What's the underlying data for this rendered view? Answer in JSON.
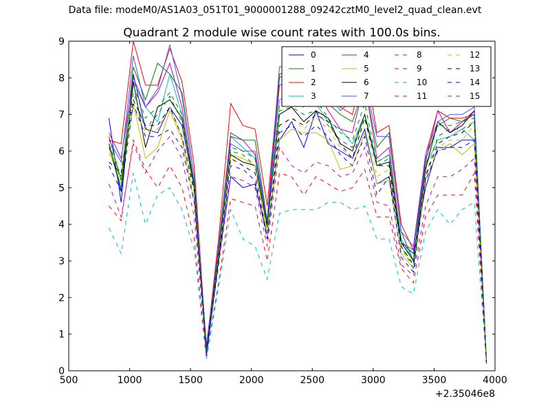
{
  "suptitle": "Data file: modeM0/AS1A03_051T01_9000001288_09242cztM0_level2_quad_clean.evt",
  "chart_data": {
    "type": "line",
    "title": "Quadrant 2 module wise count rates with 100.0s bins.",
    "xlabel": "",
    "ylabel": "",
    "x_offset_label": "+2.35046e8",
    "xlim": [
      500,
      4000
    ],
    "ylim": [
      0,
      9
    ],
    "xticks": [
      "500",
      "1000",
      "1500",
      "2000",
      "2500",
      "3000",
      "3500",
      "4000"
    ],
    "yticks": [
      "0",
      "1",
      "2",
      "3",
      "4",
      "5",
      "6",
      "7",
      "8",
      "9"
    ],
    "grid": false,
    "legend_position": "upper-right",
    "legend_columns": 4,
    "x": [
      830,
      930,
      1030,
      1130,
      1230,
      1330,
      1430,
      1530,
      1630,
      1730,
      1830,
      1930,
      2030,
      2130,
      2230,
      2330,
      2430,
      2530,
      2630,
      2730,
      2830,
      2930,
      3030,
      3130,
      3230,
      3330,
      3430,
      3530,
      3630,
      3730,
      3830,
      3930
    ],
    "series": [
      {
        "name": "0",
        "color": "#0000ff",
        "dash": "solid",
        "values": [
          6.9,
          4.6,
          8.1,
          6.6,
          6.5,
          7.2,
          6.7,
          5.0,
          0.4,
          3.0,
          5.3,
          5.0,
          5.1,
          3.7,
          6.3,
          6.8,
          6.1,
          7.1,
          6.2,
          6.0,
          5.8,
          6.6,
          5.1,
          5.3,
          3.5,
          3.2,
          5.0,
          6.1,
          6.1,
          6.3,
          6.3,
          0.2
        ]
      },
      {
        "name": "1",
        "color": "#008000",
        "dash": "solid",
        "values": [
          6.4,
          5.2,
          8.3,
          7.4,
          8.4,
          8.1,
          7.6,
          5.3,
          0.6,
          3.4,
          6.5,
          6.3,
          6.3,
          4.1,
          8.0,
          8.2,
          7.8,
          7.6,
          7.3,
          7.0,
          6.8,
          7.8,
          6.1,
          6.5,
          3.8,
          3.0,
          5.8,
          6.7,
          6.9,
          6.8,
          7.0,
          0.2
        ]
      },
      {
        "name": "2",
        "color": "#ff0000",
        "dash": "solid",
        "values": [
          6.3,
          6.2,
          9.0,
          7.8,
          7.8,
          8.8,
          7.9,
          5.6,
          0.6,
          3.6,
          7.3,
          6.7,
          6.6,
          4.5,
          8.1,
          8.2,
          8.0,
          8.1,
          7.5,
          7.2,
          7.0,
          8.5,
          6.5,
          6.7,
          4.0,
          3.3,
          5.9,
          7.1,
          6.9,
          6.9,
          7.0,
          0.2
        ]
      },
      {
        "name": "3",
        "color": "#00bfbf",
        "dash": "solid",
        "values": [
          6.2,
          5.0,
          7.9,
          7.2,
          6.8,
          8.1,
          7.0,
          5.0,
          0.5,
          3.2,
          6.4,
          6.1,
          5.8,
          3.9,
          7.4,
          7.6,
          7.3,
          7.3,
          6.8,
          6.6,
          6.2,
          7.0,
          5.7,
          5.9,
          3.6,
          3.0,
          5.6,
          6.3,
          6.4,
          6.6,
          6.3,
          0.2
        ]
      },
      {
        "name": "4",
        "color": "#bf00bf",
        "dash": "solid",
        "values": [
          6.5,
          5.8,
          8.0,
          7.2,
          7.6,
          8.4,
          7.2,
          5.1,
          0.7,
          3.3,
          6.4,
          6.3,
          5.9,
          4.0,
          7.8,
          7.9,
          7.7,
          7.8,
          7.1,
          6.6,
          6.5,
          7.9,
          5.8,
          6.1,
          3.5,
          3.3,
          5.7,
          7.1,
          6.5,
          6.8,
          7.1,
          0.3
        ]
      },
      {
        "name": "5",
        "color": "#bfbf00",
        "dash": "solid",
        "values": [
          6.0,
          5.1,
          7.3,
          5.8,
          6.1,
          7.1,
          6.3,
          4.6,
          0.6,
          3.1,
          5.9,
          5.8,
          5.6,
          3.7,
          6.3,
          6.6,
          6.5,
          6.5,
          6.3,
          5.5,
          5.6,
          6.5,
          5.1,
          5.2,
          3.2,
          2.8,
          5.2,
          6.0,
          6.2,
          5.9,
          6.2,
          0.2
        ]
      },
      {
        "name": "6",
        "color": "#000000",
        "dash": "solid",
        "values": [
          6.2,
          4.9,
          7.9,
          6.1,
          7.2,
          7.4,
          6.9,
          5.1,
          0.6,
          3.2,
          5.9,
          5.7,
          5.6,
          4.0,
          7.0,
          7.2,
          6.8,
          7.1,
          6.9,
          6.2,
          6.0,
          7.0,
          5.6,
          5.7,
          3.5,
          3.0,
          5.5,
          6.8,
          6.5,
          6.7,
          7.1,
          0.2
        ]
      },
      {
        "name": "7",
        "color": "#4d4dff",
        "dash": "solid",
        "values": [
          6.3,
          5.7,
          8.6,
          7.2,
          7.7,
          8.9,
          7.5,
          5.3,
          0.6,
          3.4,
          6.2,
          6.0,
          6.0,
          4.1,
          8.3,
          8.3,
          8.2,
          8.6,
          7.6,
          7.1,
          7.4,
          7.9,
          6.4,
          6.4,
          3.8,
          3.4,
          5.9,
          6.8,
          7.0,
          7.0,
          7.2,
          0.2
        ]
      },
      {
        "name": "8",
        "color": "#008000",
        "dash": "dashed",
        "values": [
          6.2,
          5.3,
          7.6,
          6.6,
          7.0,
          7.5,
          6.8,
          4.9,
          0.6,
          3.2,
          6.0,
          5.9,
          5.6,
          3.9,
          7.1,
          7.2,
          7.0,
          7.1,
          6.7,
          6.3,
          6.1,
          7.0,
          5.6,
          5.8,
          3.4,
          2.8,
          5.3,
          6.4,
          6.6,
          6.6,
          6.8,
          0.2
        ]
      },
      {
        "name": "9",
        "color": "#ff0000",
        "dash": "dashed",
        "values": [
          4.5,
          4.1,
          6.3,
          5.5,
          5.0,
          5.6,
          5.0,
          3.6,
          0.4,
          2.4,
          4.7,
          4.6,
          4.5,
          3.0,
          5.4,
          5.3,
          4.8,
          5.3,
          5.1,
          4.9,
          5.0,
          5.5,
          4.2,
          4.2,
          2.8,
          2.4,
          4.2,
          4.8,
          4.8,
          4.8,
          5.4,
          0.2
        ]
      },
      {
        "name": "10",
        "color": "#00bfbf",
        "dash": "dashed",
        "values": [
          3.9,
          3.2,
          5.4,
          4.0,
          4.8,
          5.0,
          4.4,
          3.3,
          0.3,
          2.3,
          4.4,
          3.6,
          3.4,
          2.5,
          4.3,
          4.4,
          4.4,
          4.4,
          4.6,
          4.6,
          4.4,
          4.5,
          3.6,
          3.6,
          2.3,
          2.1,
          3.8,
          4.4,
          4.0,
          4.4,
          4.6,
          0.2
        ]
      },
      {
        "name": "11",
        "color": "#bf00bf",
        "dash": "dashed",
        "values": [
          5.1,
          4.2,
          6.2,
          5.4,
          6.0,
          6.4,
          5.8,
          4.2,
          0.5,
          2.9,
          5.3,
          5.2,
          5.0,
          3.4,
          6.1,
          5.6,
          5.4,
          5.7,
          5.6,
          5.3,
          5.4,
          6.1,
          4.6,
          4.5,
          2.9,
          2.6,
          4.5,
          5.3,
          5.3,
          5.5,
          5.8,
          0.2
        ]
      },
      {
        "name": "12",
        "color": "#bfbf00",
        "dash": "dashed",
        "values": [
          5.9,
          5.6,
          7.2,
          6.5,
          6.6,
          7.2,
          6.4,
          4.7,
          0.6,
          3.1,
          5.9,
          5.8,
          5.6,
          3.8,
          6.7,
          6.9,
          6.6,
          6.9,
          6.6,
          6.1,
          5.8,
          6.9,
          5.3,
          5.5,
          3.3,
          2.9,
          5.4,
          6.1,
          6.3,
          6.3,
          6.7,
          0.2
        ]
      },
      {
        "name": "13",
        "color": "#000000",
        "dash": "dashed",
        "values": [
          5.7,
          5.4,
          7.4,
          6.7,
          6.7,
          7.2,
          6.4,
          4.9,
          0.6,
          3.0,
          5.8,
          5.6,
          5.4,
          3.6,
          6.7,
          6.9,
          6.7,
          7.0,
          6.8,
          6.2,
          5.8,
          6.9,
          5.6,
          5.6,
          3.4,
          2.9,
          5.3,
          6.2,
          6.4,
          6.5,
          6.8,
          0.2
        ]
      },
      {
        "name": "14",
        "color": "#0000ff",
        "dash": "dashed",
        "values": [
          5.6,
          4.9,
          7.3,
          6.4,
          6.4,
          6.6,
          6.1,
          4.6,
          0.5,
          2.9,
          5.6,
          5.5,
          5.2,
          3.6,
          6.5,
          6.7,
          6.4,
          6.7,
          6.4,
          5.9,
          5.6,
          6.4,
          4.8,
          5.3,
          3.1,
          2.7,
          5.2,
          6.0,
          6.1,
          6.1,
          6.3,
          0.2
        ]
      },
      {
        "name": "15",
        "color": "#008000",
        "dash": "dashed",
        "values": [
          6.1,
          5.2,
          7.8,
          6.9,
          7.2,
          7.6,
          7.0,
          5.0,
          0.6,
          3.2,
          6.1,
          6.0,
          5.8,
          3.9,
          7.3,
          7.5,
          7.2,
          7.4,
          6.9,
          6.5,
          6.3,
          7.3,
          5.7,
          5.9,
          3.5,
          3.0,
          5.6,
          6.7,
          6.7,
          6.8,
          6.9,
          0.2
        ]
      }
    ]
  }
}
